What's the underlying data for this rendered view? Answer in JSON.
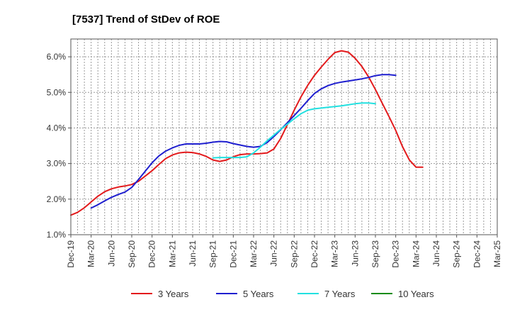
{
  "chart_data": {
    "type": "line",
    "title": "[7537]  Trend of StDev of ROE",
    "xlabel": "",
    "ylabel": "",
    "ylim": [
      1.0,
      6.5
    ],
    "yticks": [
      1.0,
      2.0,
      3.0,
      4.0,
      5.0,
      6.0
    ],
    "ytick_labels": [
      "1.0%",
      "2.0%",
      "3.0%",
      "4.0%",
      "5.0%",
      "6.0%"
    ],
    "x_tick_labels": [
      "Dec-19",
      "Mar-20",
      "Jun-20",
      "Sep-20",
      "Dec-20",
      "Mar-21",
      "Jun-21",
      "Sep-21",
      "Dec-21",
      "Mar-22",
      "Jun-22",
      "Sep-22",
      "Dec-22",
      "Mar-23",
      "Jun-23",
      "Sep-23",
      "Dec-23",
      "Mar-24",
      "Jun-24",
      "Sep-24",
      "Dec-24",
      "Mar-25"
    ],
    "grid": true,
    "legend_position": "bottom",
    "series": [
      {
        "name": "3 Years",
        "color": "#e31a1c",
        "points": [
          [
            0,
            1.55
          ],
          [
            0.33,
            1.63
          ],
          [
            0.67,
            1.76
          ],
          [
            1,
            1.92
          ],
          [
            1.33,
            2.08
          ],
          [
            1.67,
            2.21
          ],
          [
            2,
            2.29
          ],
          [
            2.33,
            2.34
          ],
          [
            2.67,
            2.37
          ],
          [
            3,
            2.41
          ],
          [
            3.33,
            2.5
          ],
          [
            3.67,
            2.65
          ],
          [
            4,
            2.8
          ],
          [
            4.33,
            2.97
          ],
          [
            4.67,
            3.14
          ],
          [
            5,
            3.24
          ],
          [
            5.33,
            3.3
          ],
          [
            5.67,
            3.32
          ],
          [
            6,
            3.31
          ],
          [
            6.33,
            3.27
          ],
          [
            6.67,
            3.2
          ],
          [
            7,
            3.1
          ],
          [
            7.33,
            3.06
          ],
          [
            7.67,
            3.1
          ],
          [
            8,
            3.19
          ],
          [
            8.33,
            3.25
          ],
          [
            8.67,
            3.27
          ],
          [
            9,
            3.27
          ],
          [
            9.33,
            3.28
          ],
          [
            9.67,
            3.3
          ],
          [
            10,
            3.41
          ],
          [
            10.33,
            3.7
          ],
          [
            10.67,
            4.1
          ],
          [
            11,
            4.5
          ],
          [
            11.33,
            4.87
          ],
          [
            11.67,
            5.2
          ],
          [
            12,
            5.48
          ],
          [
            12.33,
            5.71
          ],
          [
            12.67,
            5.93
          ],
          [
            13,
            6.12
          ],
          [
            13.33,
            6.17
          ],
          [
            13.67,
            6.13
          ],
          [
            14,
            5.96
          ],
          [
            14.33,
            5.73
          ],
          [
            14.67,
            5.43
          ],
          [
            15,
            5.08
          ],
          [
            15.33,
            4.7
          ],
          [
            15.67,
            4.32
          ],
          [
            16,
            3.93
          ],
          [
            16.33,
            3.48
          ],
          [
            16.67,
            3.1
          ],
          [
            17,
            2.9
          ],
          [
            17.33,
            2.9
          ]
        ]
      },
      {
        "name": "5 Years",
        "color": "#1f1fcf",
        "points": [
          [
            1,
            1.75
          ],
          [
            1.33,
            1.84
          ],
          [
            1.67,
            1.95
          ],
          [
            2,
            2.05
          ],
          [
            2.33,
            2.13
          ],
          [
            2.67,
            2.2
          ],
          [
            3,
            2.33
          ],
          [
            3.33,
            2.55
          ],
          [
            3.67,
            2.79
          ],
          [
            4,
            3.02
          ],
          [
            4.33,
            3.21
          ],
          [
            4.67,
            3.35
          ],
          [
            5,
            3.44
          ],
          [
            5.33,
            3.51
          ],
          [
            5.67,
            3.55
          ],
          [
            6,
            3.55
          ],
          [
            6.33,
            3.55
          ],
          [
            6.67,
            3.57
          ],
          [
            7,
            3.6
          ],
          [
            7.33,
            3.62
          ],
          [
            7.67,
            3.61
          ],
          [
            8,
            3.56
          ],
          [
            8.33,
            3.52
          ],
          [
            8.67,
            3.48
          ],
          [
            9,
            3.46
          ],
          [
            9.33,
            3.48
          ],
          [
            9.67,
            3.59
          ],
          [
            10,
            3.76
          ],
          [
            10.33,
            3.95
          ],
          [
            10.67,
            4.15
          ],
          [
            11,
            4.35
          ],
          [
            11.33,
            4.55
          ],
          [
            11.67,
            4.77
          ],
          [
            12,
            4.97
          ],
          [
            12.33,
            5.1
          ],
          [
            12.67,
            5.19
          ],
          [
            13,
            5.25
          ],
          [
            13.33,
            5.29
          ],
          [
            13.67,
            5.32
          ],
          [
            14,
            5.35
          ],
          [
            14.33,
            5.38
          ],
          [
            14.67,
            5.42
          ],
          [
            15,
            5.47
          ],
          [
            15.33,
            5.5
          ],
          [
            15.67,
            5.5
          ],
          [
            16,
            5.48
          ]
        ]
      },
      {
        "name": "7 Years",
        "color": "#22e0e0",
        "points": [
          [
            7,
            3.16
          ],
          [
            7.33,
            3.17
          ],
          [
            7.67,
            3.17
          ],
          [
            8,
            3.17
          ],
          [
            8.33,
            3.17
          ],
          [
            8.67,
            3.19
          ],
          [
            9,
            3.3
          ],
          [
            9.33,
            3.46
          ],
          [
            9.67,
            3.64
          ],
          [
            10,
            3.8
          ],
          [
            10.33,
            3.96
          ],
          [
            10.67,
            4.11
          ],
          [
            11,
            4.26
          ],
          [
            11.33,
            4.4
          ],
          [
            11.67,
            4.5
          ],
          [
            12,
            4.54
          ],
          [
            12.33,
            4.56
          ],
          [
            12.67,
            4.58
          ],
          [
            13,
            4.6
          ],
          [
            13.33,
            4.62
          ],
          [
            13.67,
            4.65
          ],
          [
            14,
            4.68
          ],
          [
            14.33,
            4.7
          ],
          [
            14.67,
            4.7
          ],
          [
            15,
            4.68
          ]
        ]
      },
      {
        "name": "10 Years",
        "color": "#1a8c1a",
        "points": []
      }
    ]
  }
}
